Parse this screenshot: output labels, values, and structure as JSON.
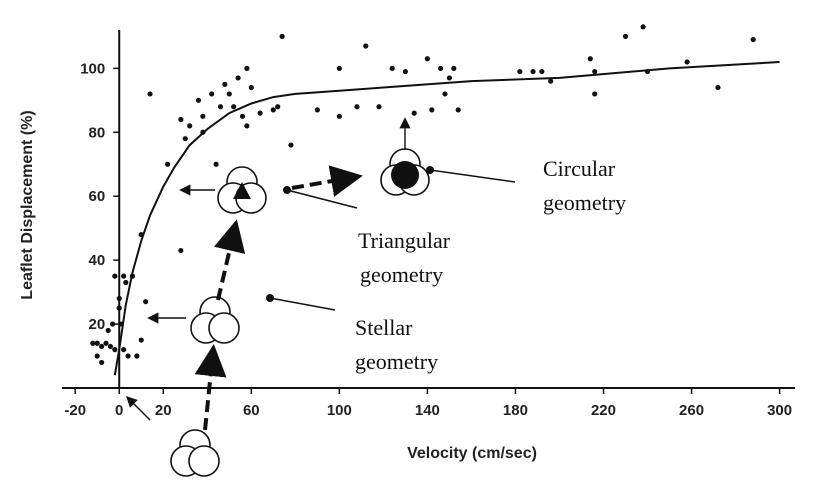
{
  "chart_data": {
    "type": "scatter",
    "xlabel": "Velocity (cm/sec)",
    "ylabel": "Leaflet Displacement (%)",
    "xlim": [
      -26,
      307
    ],
    "xticks": [
      -20,
      0,
      20,
      60,
      100,
      140,
      180,
      220,
      260,
      300
    ],
    "ylim": [
      0,
      112
    ],
    "yticks": [
      20,
      40,
      60,
      80,
      100
    ],
    "series": [
      {
        "mode": "markers",
        "color": "#111111",
        "x": [
          -12,
          -10,
          -8,
          -6,
          -4,
          -10,
          -8,
          -5,
          -3,
          -2,
          0,
          0,
          -2,
          2,
          1,
          2,
          4,
          3,
          6,
          8,
          10,
          12,
          10,
          14,
          22,
          28,
          28,
          30,
          32,
          36,
          38,
          38,
          42,
          44,
          46,
          48,
          50,
          52,
          54,
          56,
          58,
          58,
          60,
          64,
          70,
          72,
          74,
          78,
          90,
          100,
          100,
          108,
          112,
          118,
          124,
          130,
          134,
          140,
          142,
          146,
          148,
          150,
          152,
          154,
          182,
          188,
          192,
          196,
          214,
          216,
          216,
          230,
          238,
          240,
          258,
          272,
          288
        ],
        "values": [
          14,
          14,
          13,
          14,
          13,
          10,
          8,
          18,
          20,
          12,
          25,
          28,
          35,
          35,
          20,
          12,
          10,
          33,
          35,
          10,
          15,
          27,
          48,
          92,
          70,
          43,
          84,
          78,
          82,
          90,
          80,
          85,
          92,
          70,
          88,
          95,
          92,
          88,
          97,
          85,
          100,
          82,
          94,
          86,
          87,
          88,
          110,
          76,
          87,
          85,
          100,
          88,
          107,
          88,
          100,
          99,
          86,
          103,
          87,
          100,
          92,
          97,
          100,
          87,
          99,
          99,
          99,
          96,
          103,
          99,
          92,
          110,
          113,
          99,
          102,
          94,
          109
        ]
      },
      {
        "mode": "line",
        "color": "#111111",
        "x": [
          -2,
          0,
          3,
          6,
          10,
          14,
          20,
          25,
          32,
          40,
          50,
          60,
          70,
          80,
          100,
          120,
          160,
          200,
          250,
          300
        ],
        "values": [
          4,
          12,
          26,
          36,
          46,
          54,
          63,
          69,
          76,
          81,
          86,
          89,
          91,
          92,
          93,
          94,
          96,
          97,
          100,
          102
        ]
      }
    ],
    "annotations": [
      {
        "lines": [
          "Circular",
          "geometry"
        ]
      },
      {
        "lines": [
          "Triangular",
          "geometry"
        ]
      },
      {
        "lines": [
          "Stellar",
          "geometry"
        ]
      }
    ]
  }
}
